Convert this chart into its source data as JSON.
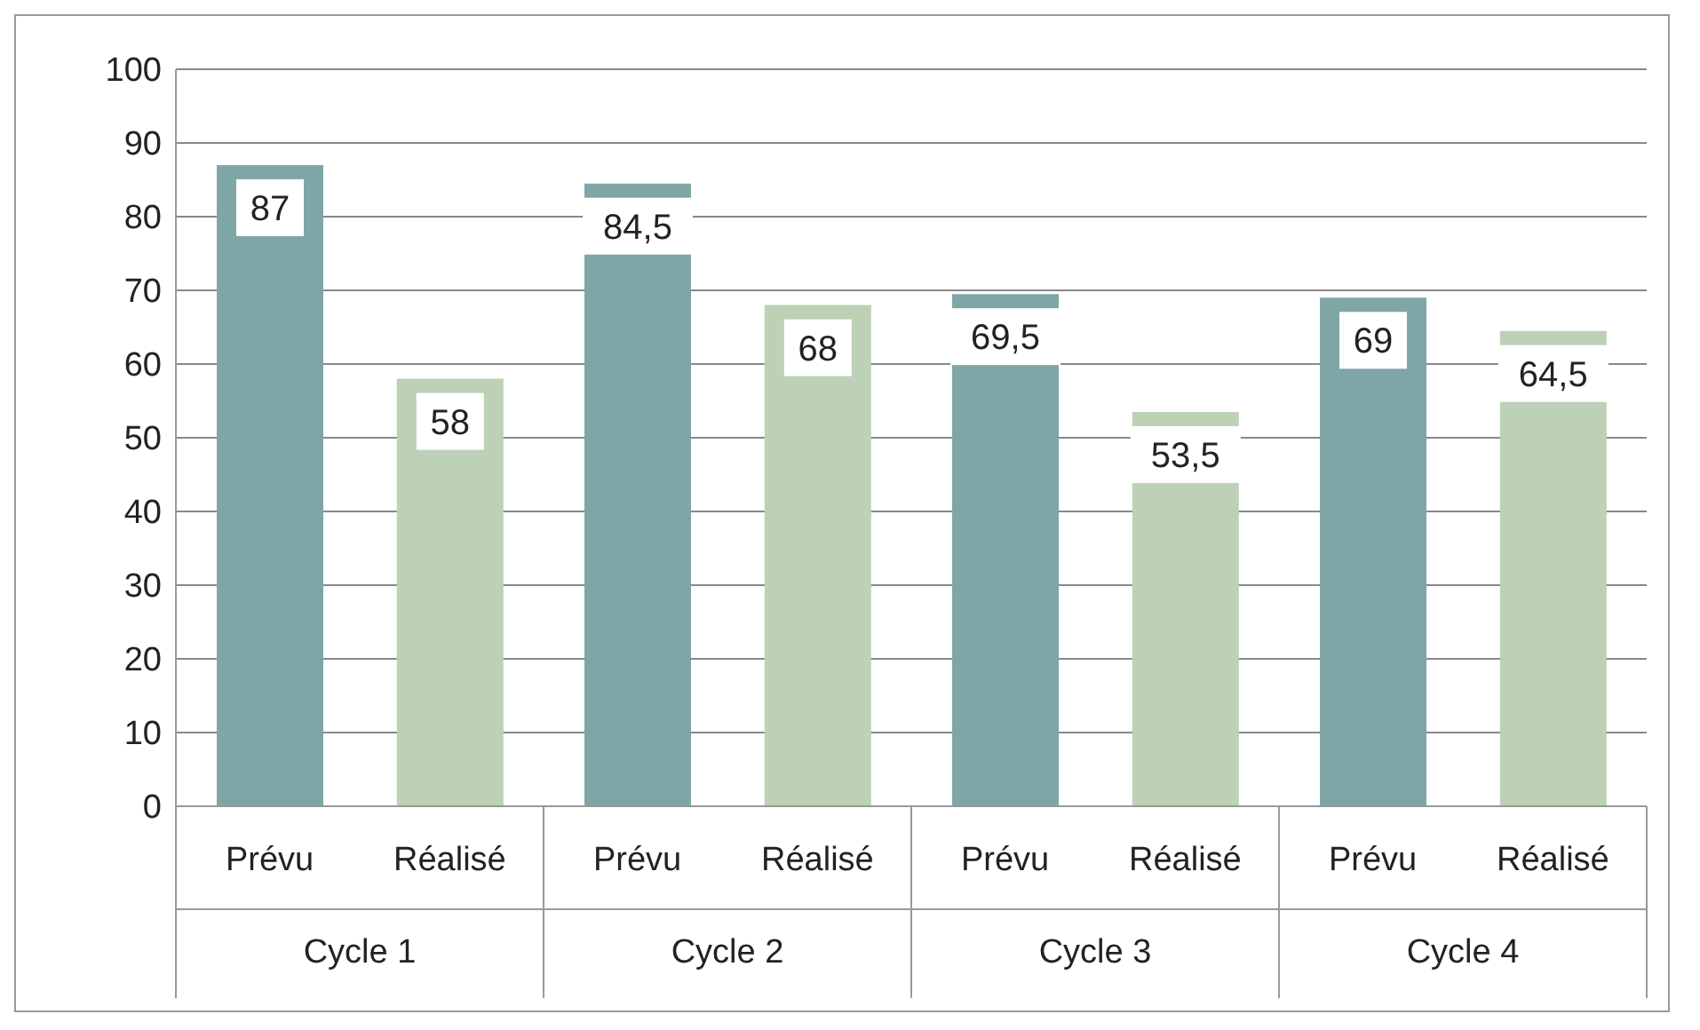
{
  "chart_data": {
    "type": "bar",
    "categories": [
      "Cycle 1",
      "Cycle 2",
      "Cycle 3",
      "Cycle 4"
    ],
    "series": [
      {
        "name": "Prévu",
        "color": "#7fa6a6",
        "values": [
          87,
          84.5,
          69.5,
          69
        ],
        "value_labels": [
          "87",
          "84,5",
          "69,5",
          "69"
        ]
      },
      {
        "name": "Réalisé",
        "color": "#bcd1b6",
        "values": [
          58,
          68,
          53.5,
          64.5
        ],
        "value_labels": [
          "58",
          "68",
          "53,5",
          "64,5"
        ]
      }
    ],
    "ylim": [
      0,
      100
    ],
    "yticks": [
      0,
      10,
      20,
      30,
      40,
      50,
      60,
      70,
      80,
      90,
      100
    ],
    "grid": "y"
  }
}
